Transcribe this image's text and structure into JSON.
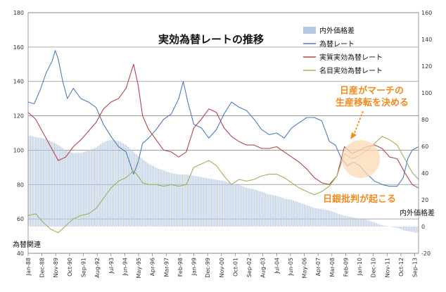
{
  "chart_data": {
    "type": "line",
    "title": "実効為替レートの推移",
    "left_axis": {
      "ylim": [
        40,
        180
      ],
      "ticks": [
        40,
        60,
        80,
        100,
        120,
        140,
        160,
        180
      ],
      "label": "為替関連"
    },
    "right_axis": {
      "ylim": [
        -20,
        160
      ],
      "ticks": [
        -20,
        0,
        20,
        40,
        60,
        80,
        100,
        120,
        140,
        160
      ],
      "label": "内外価格差"
    },
    "x_range": [
      1988.0,
      2013.92
    ],
    "x_ticks": [
      {
        "label": "Jan-88",
        "x": 1988.0
      },
      {
        "label": "Dec-88",
        "x": 1988.917
      },
      {
        "label": "Nov-89",
        "x": 1989.833
      },
      {
        "label": "Oct-90",
        "x": 1990.75
      },
      {
        "label": "Sep-91",
        "x": 1991.667
      },
      {
        "label": "Aug-92",
        "x": 1992.583
      },
      {
        "label": "Jul-93",
        "x": 1993.5
      },
      {
        "label": "Jun-94",
        "x": 1994.417
      },
      {
        "label": "May-95",
        "x": 1995.333
      },
      {
        "label": "Apr-96",
        "x": 1996.25
      },
      {
        "label": "Mar-97",
        "x": 1997.167
      },
      {
        "label": "Feb-98",
        "x": 1998.083
      },
      {
        "label": "Jan-99",
        "x": 1999.0
      },
      {
        "label": "Dec-99",
        "x": 1999.917
      },
      {
        "label": "Nov-00",
        "x": 2000.833
      },
      {
        "label": "Oct-01",
        "x": 2001.75
      },
      {
        "label": "Sep-02",
        "x": 2002.667
      },
      {
        "label": "Aug-03",
        "x": 2003.583
      },
      {
        "label": "Jul-04",
        "x": 2004.5
      },
      {
        "label": "Jun-05",
        "x": 2005.417
      },
      {
        "label": "May-06",
        "x": 2006.333
      },
      {
        "label": "Apr-07",
        "x": 2007.25
      },
      {
        "label": "Mar-08",
        "x": 2008.167
      },
      {
        "label": "Feb-09",
        "x": 2009.083
      },
      {
        "label": "Jan-10",
        "x": 2010.0
      },
      {
        "label": "Dec-10",
        "x": 2010.917
      },
      {
        "label": "Nov-11",
        "x": 2011.833
      },
      {
        "label": "Oct-12",
        "x": 2012.75
      },
      {
        "label": "Sep-13",
        "x": 2013.667
      }
    ],
    "legend": {
      "position": "top-right"
    },
    "series": [
      {
        "name": "内外価格差",
        "style": "bar",
        "axis": "right",
        "color": "#b7c9e2",
        "x": [
          1988.0,
          1988.5,
          1989.0,
          1989.5,
          1990.0,
          1990.5,
          1991.0,
          1991.5,
          1992.0,
          1992.5,
          1993.0,
          1993.5,
          1994.0,
          1994.5,
          1995.0,
          1995.5,
          1996.0,
          1996.5,
          1997.0,
          1997.5,
          1998.0,
          1998.5,
          1999.0,
          1999.5,
          2000.0,
          2000.5,
          2001.0,
          2001.5,
          2002.0,
          2002.5,
          2003.0,
          2003.5,
          2004.0,
          2004.5,
          2005.0,
          2005.5,
          2006.0,
          2006.5,
          2007.0,
          2007.5,
          2008.0,
          2008.5,
          2009.0,
          2009.5,
          2010.0,
          2010.5,
          2011.0,
          2011.5,
          2012.0,
          2012.5,
          2013.0,
          2013.5,
          2013.92
        ],
        "values": [
          68,
          67,
          66,
          64,
          61,
          57,
          55,
          55,
          57,
          59,
          63,
          65,
          64,
          61,
          56,
          51,
          47,
          44,
          42,
          40,
          39,
          39,
          38,
          37,
          36,
          35,
          34,
          32,
          31,
          29,
          28,
          26,
          24,
          23,
          21,
          20,
          18,
          16,
          14,
          13,
          12,
          10,
          8,
          7,
          6,
          5,
          3,
          1,
          0,
          -1,
          -3,
          -4,
          -5
        ]
      },
      {
        "name": "為替レート",
        "style": "line",
        "axis": "left",
        "color": "#4a7ebf",
        "x": [
          1988.0,
          1988.4,
          1988.8,
          1989.2,
          1989.6,
          1989.8,
          1990.0,
          1990.3,
          1990.6,
          1991.0,
          1991.5,
          1992.0,
          1992.5,
          1993.0,
          1993.5,
          1994.0,
          1994.5,
          1995.0,
          1995.3,
          1995.6,
          1996.0,
          1996.5,
          1997.0,
          1997.5,
          1998.0,
          1998.3,
          1998.6,
          1999.0,
          1999.5,
          2000.0,
          2000.5,
          2001.0,
          2001.5,
          2002.0,
          2002.5,
          2003.0,
          2003.5,
          2004.0,
          2004.5,
          2005.0,
          2005.5,
          2006.0,
          2006.5,
          2007.0,
          2007.5,
          2008.0,
          2008.4,
          2008.8,
          2009.2,
          2009.6,
          2010.0,
          2010.5,
          2011.0,
          2011.5,
          2012.0,
          2012.5,
          2012.9,
          2013.2,
          2013.5,
          2013.92
        ],
        "values": [
          128,
          127,
          135,
          145,
          152,
          158,
          153,
          140,
          130,
          136,
          130,
          128,
          125,
          115,
          108,
          102,
          99,
          86,
          93,
          104,
          107,
          112,
          118,
          121,
          130,
          140,
          128,
          115,
          113,
          107,
          112,
          121,
          128,
          125,
          123,
          118,
          112,
          109,
          110,
          107,
          113,
          116,
          119,
          119,
          117,
          105,
          103,
          95,
          91,
          93,
          91,
          86,
          82,
          80,
          79,
          79,
          84,
          95,
          100,
          102
        ]
      },
      {
        "name": "実質実効為替レート",
        "style": "line",
        "axis": "left",
        "color": "#b8434a",
        "x": [
          1988.0,
          1988.5,
          1989.0,
          1989.5,
          1990.0,
          1990.5,
          1991.0,
          1991.5,
          1992.0,
          1992.5,
          1993.0,
          1993.5,
          1994.0,
          1994.5,
          1995.0,
          1995.3,
          1995.6,
          1996.0,
          1996.5,
          1997.0,
          1997.5,
          1998.0,
          1998.5,
          1999.0,
          1999.5,
          2000.0,
          2000.5,
          2001.0,
          2001.5,
          2002.0,
          2002.5,
          2003.0,
          2003.5,
          2004.0,
          2004.5,
          2005.0,
          2005.5,
          2006.0,
          2006.5,
          2007.0,
          2007.5,
          2008.0,
          2008.5,
          2009.0,
          2009.5,
          2010.0,
          2010.5,
          2011.0,
          2011.5,
          2012.0,
          2012.5,
          2013.0,
          2013.5,
          2013.92
        ],
        "values": [
          122,
          118,
          110,
          102,
          94,
          96,
          102,
          106,
          111,
          116,
          124,
          128,
          130,
          136,
          150,
          138,
          120,
          112,
          106,
          100,
          99,
          96,
          99,
          113,
          118,
          124,
          122,
          113,
          108,
          105,
          103,
          103,
          101,
          101,
          102,
          99,
          96,
          93,
          89,
          84,
          81,
          80,
          85,
          102,
          98,
          100,
          102,
          103,
          101,
          96,
          95,
          87,
          80,
          78
        ]
      },
      {
        "name": "名目実効為替レート",
        "style": "line",
        "axis": "left",
        "color": "#9bb359",
        "x": [
          1988.0,
          1988.5,
          1989.0,
          1989.5,
          1990.0,
          1990.5,
          1991.0,
          1991.5,
          1992.0,
          1992.5,
          1993.0,
          1993.5,
          1994.0,
          1994.5,
          1995.0,
          1995.3,
          1995.6,
          1996.0,
          1996.5,
          1997.0,
          1997.5,
          1998.0,
          1998.5,
          1999.0,
          1999.5,
          2000.0,
          2000.5,
          2001.0,
          2001.5,
          2002.0,
          2002.5,
          2003.0,
          2003.5,
          2004.0,
          2004.5,
          2005.0,
          2005.5,
          2006.0,
          2006.5,
          2007.0,
          2007.5,
          2008.0,
          2008.5,
          2009.0,
          2009.5,
          2010.0,
          2010.5,
          2011.0,
          2011.5,
          2012.0,
          2012.5,
          2013.0,
          2013.5,
          2013.92
        ],
        "values": [
          62,
          63,
          58,
          54,
          52,
          56,
          60,
          62,
          63,
          66,
          72,
          78,
          82,
          84,
          88,
          85,
          81,
          80,
          80,
          79,
          80,
          79,
          80,
          90,
          92,
          94,
          91,
          85,
          80,
          83,
          82,
          83,
          85,
          86,
          86,
          84,
          81,
          78,
          76,
          74,
          76,
          79,
          85,
          98,
          95,
          97,
          100,
          104,
          108,
          106,
          103,
          95,
          87,
          83
        ]
      }
    ],
    "annotations": [
      {
        "text": "日産がマーチの"
      },
      {
        "text": "生産移転を決める"
      },
      {
        "text": "日銀批判が起こる"
      }
    ]
  }
}
